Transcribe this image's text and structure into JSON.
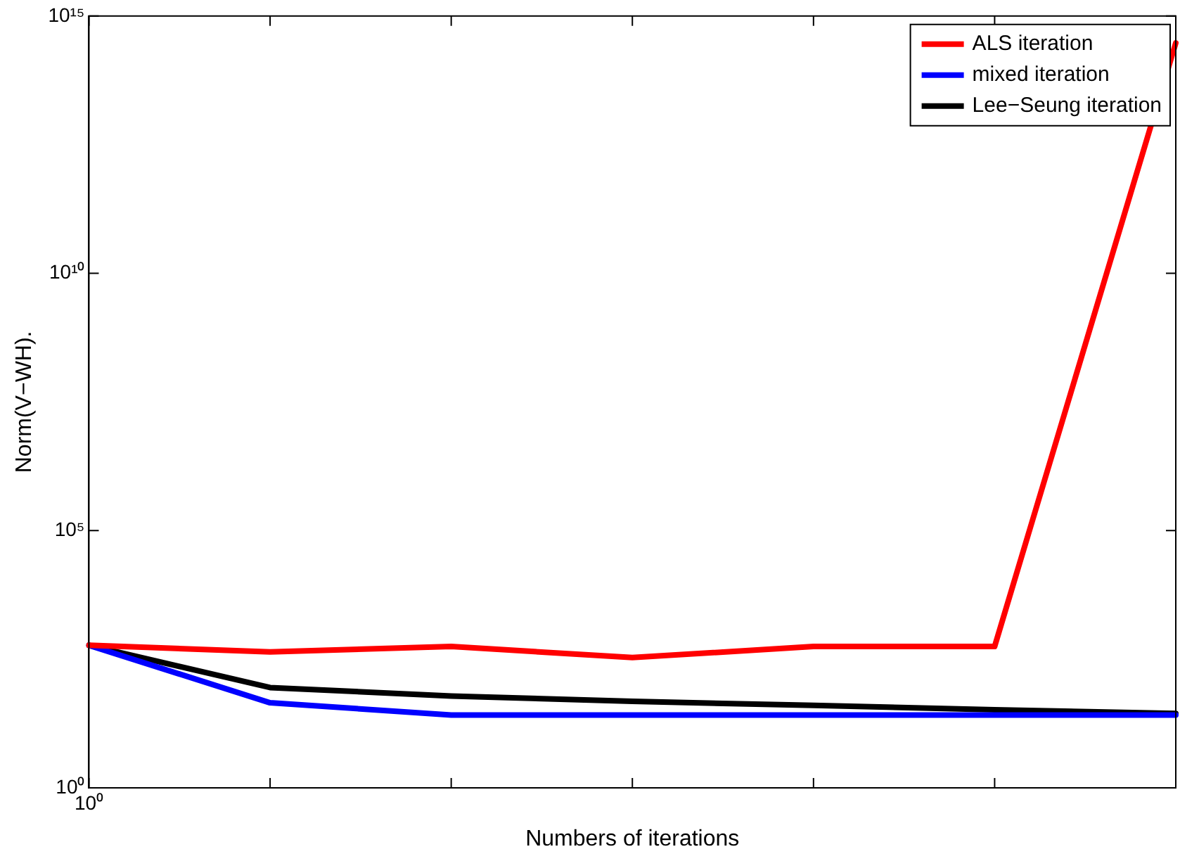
{
  "chart_data": {
    "type": "line",
    "xlabel": "Numbers of iterations",
    "ylabel": "Norm(V−WH).",
    "log": "y",
    "grid": false,
    "legend": "top right",
    "line_style": "solid",
    "marker": "none",
    "categories": [
      "10⁰",
      null,
      null,
      null,
      null,
      null,
      null
    ],
    "ylim": [
      1,
      1000000000000000.0
    ],
    "yticks": [
      {
        "value": 1,
        "label": "10⁰"
      },
      {
        "value": 100000,
        "label": "10⁵"
      },
      {
        "value": 10000000000,
        "label": "10¹⁰"
      },
      {
        "value": 1000000000000000.0,
        "label": "10¹⁵"
      }
    ],
    "series": [
      {
        "name": "ALS iteration",
        "color": "#ff0000",
        "values": [
          590,
          440,
          560,
          340,
          560,
          560,
          300000000000000.0
        ]
      },
      {
        "name": "mixed iteration",
        "color": "#0000ff",
        "values": [
          590,
          45,
          26,
          26,
          26,
          26,
          26
        ]
      },
      {
        "name": "Lee−Seung iteration",
        "color": "#000000",
        "values": [
          590,
          89,
          61,
          48,
          40,
          33,
          28
        ]
      }
    ]
  }
}
